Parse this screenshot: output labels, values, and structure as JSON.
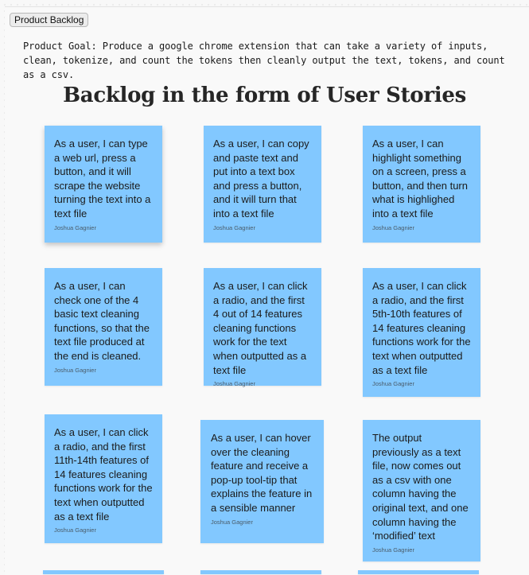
{
  "toolbar": {
    "button_label": "Product Backlog"
  },
  "goal_text": "Product Goal: Produce a google chrome extension that can take a variety of inputs, clean, tokenize, and count the tokens then cleanly output the text, tokens, and count as a csv.",
  "heading": "Backlog in the form of User Stories",
  "notes": [
    {
      "text": "As a user, I can type a web url, press a button, and it will scrape the website turning the text into a text file",
      "author": "Joshua Gagnier"
    },
    {
      "text": "As a user, I can copy and paste text and put into a text box and press a button, and it will turn that into a text file",
      "author": "Joshua Gagnier"
    },
    {
      "text": "As a user, I can highlight something on a screen, press a button, and then turn what is highlighed into a text file",
      "author": "Joshua Gagnier"
    },
    {
      "text": "As a user, I can check one of the 4 basic text cleaning functions, so that the text file produced at the end is cleaned.",
      "author": "Joshua Gagnier"
    },
    {
      "text": "As a user, I can click a radio, and the first 4 out of 14 features cleaning functions work for the text when outputted as a text file",
      "author": "Joshua Gagnier"
    },
    {
      "text": "As a user, I can click a radio, and the first 5th-10th features of 14 features cleaning functions work for the text when outputted as a text file",
      "author": "Joshua Gagnier"
    },
    {
      "text": "As a user, I can click a radio, and the first 11th-14th features of 14 features cleaning functions work for the text when outputted as a text file",
      "author": "Joshua Gagnier"
    },
    {
      "text": "As a user, I can hover over the cleaning feature and receive a pop-up tool-tip that explains the feature in a sensible manner",
      "author": "Joshua Gagnier"
    },
    {
      "text": "The output previously as a text file, now comes out as a csv with one column having the original text, and one column having the ‘modified’ text",
      "author": "Joshua Gagnier"
    }
  ],
  "colors": {
    "note_bg": "#82c8ff",
    "page_bg": "#f9f9f9"
  }
}
